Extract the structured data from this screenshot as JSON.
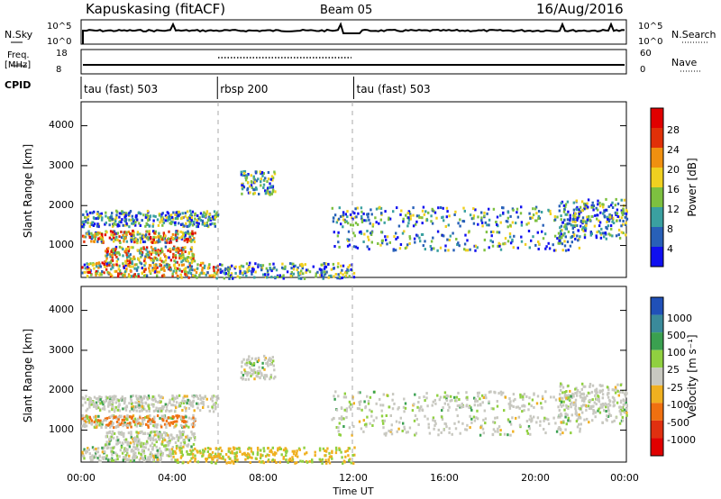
{
  "header": {
    "site": "Kapuskasing (fitACF)",
    "beam": "Beam 05",
    "date": "16/Aug/2016"
  },
  "labels": {
    "nsky": "N.Sky",
    "nsearch": "N.Search",
    "freq_line1": "Freq.",
    "freq_line2": "[MHz]",
    "nave": "Nave",
    "cpid": "CPID",
    "nsky_ticks": [
      "10^5",
      "10^0"
    ],
    "nsearch_ticks": [
      "10^5",
      "10^0"
    ],
    "freq_ticks": [
      "18",
      "8"
    ],
    "nave_ticks": [
      "60",
      "0"
    ]
  },
  "cpid_segments": [
    {
      "label": "tau (fast) 503",
      "start_hour": 0,
      "end_hour": 6
    },
    {
      "label": "rbsp 200",
      "start_hour": 6,
      "end_hour": 12
    },
    {
      "label": "tau (fast) 503",
      "start_hour": 12,
      "end_hour": 24
    }
  ],
  "chart_data": [
    {
      "type": "heatmap",
      "panel": "power",
      "ylabel": "Slant Range [km]",
      "y_ticks": [
        "1000",
        "2000",
        "3000",
        "4000"
      ],
      "ylim": [
        200,
        4600
      ],
      "colorbar_label": "Power [dB]",
      "colorbar_ticks": [
        "4",
        "8",
        "12",
        "16",
        "20",
        "24",
        "28"
      ],
      "colors": [
        "#1010f0",
        "#2860b8",
        "#3aa0a0",
        "#7dc040",
        "#f0d020",
        "#f09010",
        "#e03008",
        "#e00000"
      ]
    },
    {
      "type": "heatmap",
      "panel": "velocity",
      "ylabel": "Slant Range [km]",
      "y_ticks": [
        "1000",
        "2000",
        "3000",
        "4000"
      ],
      "ylim": [
        200,
        4600
      ],
      "colorbar_label": "Velocity [m s⁻¹]",
      "colorbar_ticks": [
        "1000",
        "500",
        "100",
        "25",
        "-25",
        "-100",
        "-500",
        "-1000"
      ],
      "colors": [
        "#2050b8",
        "#3a8a9a",
        "#3aa050",
        "#90d040",
        "#c8c8c0",
        "#f0b020",
        "#f07010",
        "#e03010",
        "#e00000"
      ]
    }
  ],
  "x_axis": {
    "label": "Time UT",
    "ticks": [
      "00:00",
      "04:00",
      "08:00",
      "12:00",
      "16:00",
      "20:00",
      "00:00"
    ]
  }
}
